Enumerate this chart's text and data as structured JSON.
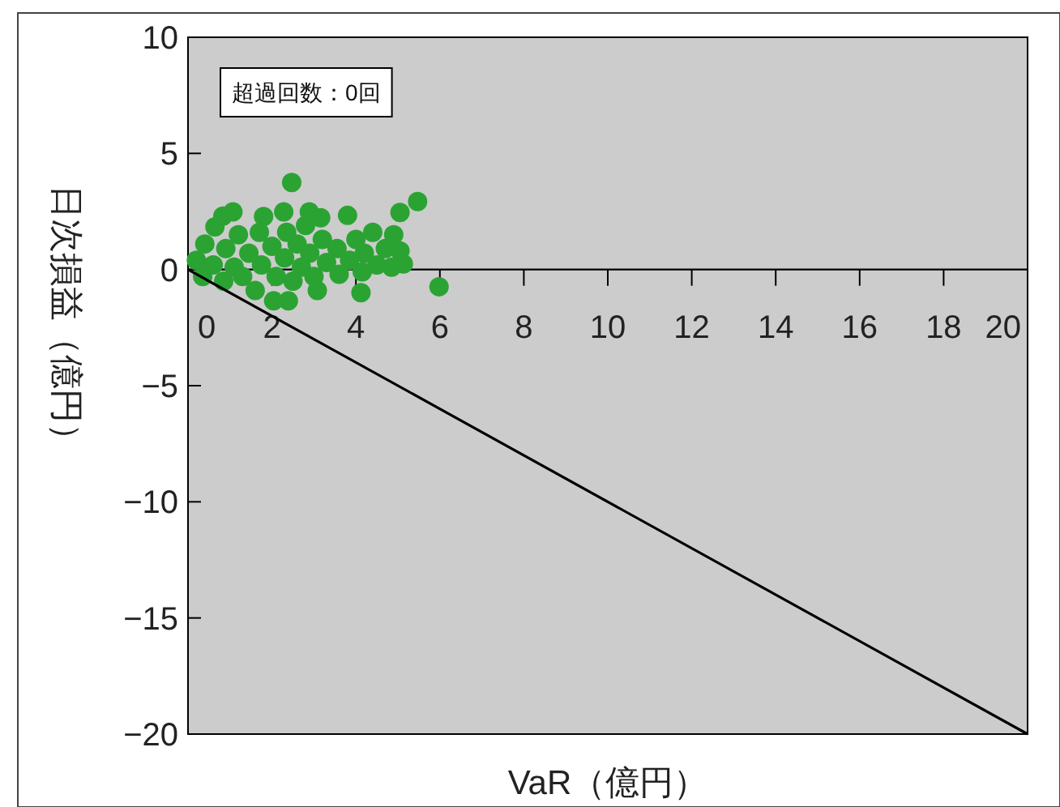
{
  "chart_data": {
    "type": "scatter",
    "xlabel": "VaR（億円）",
    "ylabel": "日次損益（億円）",
    "annotations": [
      "超過回数：0回"
    ],
    "xlim": [
      0,
      20
    ],
    "ylim": [
      -20,
      10
    ],
    "xticks": [
      0,
      2,
      4,
      6,
      8,
      10,
      12,
      14,
      16,
      18,
      20
    ],
    "yticks": [
      -20,
      -15,
      -10,
      -5,
      0,
      5,
      10
    ],
    "grid": false,
    "series": [
      {
        "type": "scatter",
        "marker": "circle",
        "color": "#2ba333",
        "x": [
          0.2,
          0.35,
          0.4,
          0.64,
          0.6,
          0.83,
          0.85,
          0.9,
          1.07,
          1.1,
          1.2,
          1.3,
          1.45,
          1.6,
          1.7,
          1.8,
          1.75,
          2.0,
          2.04,
          2.1,
          2.28,
          2.3,
          2.35,
          2.39,
          2.47,
          2.5,
          2.6,
          2.7,
          2.8,
          2.89,
          2.9,
          3.0,
          3.08,
          3.16,
          3.2,
          3.3,
          3.55,
          3.6,
          3.8,
          3.85,
          4.0,
          4.12,
          4.15,
          4.2,
          4.4,
          4.5,
          4.7,
          4.9,
          4.85,
          5.05,
          5.05,
          5.13,
          5.47,
          5.98
        ],
        "values": [
          0.4,
          -0.3,
          1.1,
          1.84,
          0.2,
          2.3,
          -0.5,
          0.9,
          2.48,
          0.1,
          1.5,
          -0.3,
          0.7,
          -0.9,
          1.6,
          2.28,
          0.2,
          1.0,
          -1.35,
          -0.3,
          2.48,
          0.5,
          1.6,
          -1.35,
          3.75,
          -0.5,
          1.1,
          0.1,
          1.9,
          2.48,
          0.7,
          -0.3,
          -0.9,
          2.23,
          1.3,
          0.3,
          0.9,
          -0.2,
          2.33,
          0.4,
          1.3,
          -1.0,
          -0.1,
          0.7,
          1.6,
          0.2,
          0.9,
          1.5,
          0.1,
          2.46,
          0.8,
          0.24,
          2.93,
          -0.74
        ]
      },
      {
        "type": "line",
        "color": "#000000",
        "x": [
          0,
          20
        ],
        "values": [
          0,
          -20
        ]
      }
    ]
  }
}
